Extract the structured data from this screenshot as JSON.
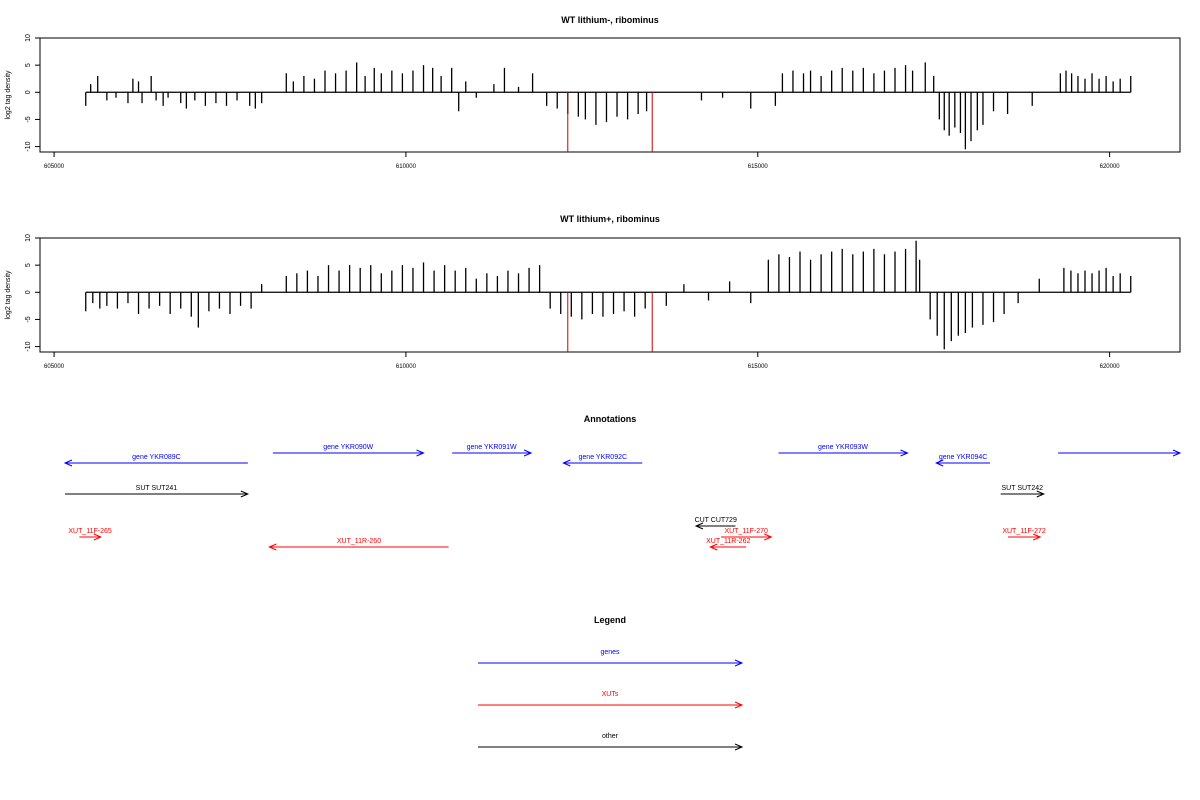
{
  "chart_data": [
    {
      "type": "bar",
      "title": "WT lithium-, ribominus",
      "ylabel": "log2 tag density",
      "xlabel": "",
      "xlim": [
        604800,
        621000
      ],
      "ylim": [
        -11,
        10
      ],
      "x_ticks": [
        605000,
        610000,
        615000,
        620000
      ],
      "y_ticks": [
        10,
        5,
        0,
        -5,
        -10
      ],
      "baseline": 0,
      "series": [
        {
          "color": "#000000",
          "x": [
            605450,
            605520,
            605620,
            605750,
            605880,
            606050,
            606120,
            606200,
            606250,
            606380,
            606450,
            606550,
            606620,
            606800,
            606880,
            607000,
            607150,
            607300,
            607450,
            607600,
            607780,
            607860,
            607950,
            608300,
            608400,
            608550,
            608700,
            608850,
            609000,
            609150,
            609300,
            609420,
            609550,
            609650,
            609800,
            609950,
            610100,
            610250,
            610380,
            610500,
            610650,
            610750,
            610850,
            611000,
            611250,
            611400,
            611600,
            611800,
            612000,
            612150,
            612300,
            612450,
            612550,
            612700,
            612850,
            613000,
            613150,
            613300,
            613420,
            614200,
            614500,
            614900,
            615250,
            615350,
            615500,
            615650,
            615750,
            615900,
            616050,
            616200,
            616350,
            616500,
            616650,
            616800,
            616950,
            617100,
            617200,
            617380,
            617500,
            617580,
            617650,
            617720,
            617800,
            617880,
            617950,
            618030,
            618120,
            618200,
            618350,
            618550,
            618900,
            619300,
            619380,
            619460,
            619550,
            619650,
            619750,
            619850,
            619950,
            620050,
            620150,
            620300
          ],
          "y": [
            -2.5,
            1.5,
            3,
            -1.5,
            -1,
            -2,
            2.5,
            2,
            -2,
            3,
            -1.5,
            -2.5,
            -1,
            -2,
            -3,
            -1.5,
            -2.5,
            -2,
            -2.5,
            -1.5,
            -2.5,
            -3,
            -2,
            3.5,
            2,
            3,
            2.5,
            4,
            3.5,
            4,
            5.5,
            3,
            4.5,
            3.5,
            4,
            3.5,
            4,
            5,
            4.5,
            3,
            4.5,
            -3.5,
            2,
            -1,
            1.5,
            4.5,
            1,
            3.5,
            -2.5,
            -3,
            -4,
            -4.5,
            -5,
            -6,
            -5.5,
            -4.5,
            -5,
            -4,
            -3.5,
            -1.5,
            -1,
            -3,
            -2.5,
            3.5,
            4,
            3.5,
            4,
            3,
            4,
            4.5,
            4,
            4.5,
            3.5,
            4,
            4.5,
            5,
            4,
            5.5,
            3,
            -5,
            -7,
            -8,
            -6.5,
            -7.5,
            -10.5,
            -9,
            -7,
            -6,
            -3.5,
            -4,
            -2.5,
            3.5,
            4,
            3.5,
            3,
            2.5,
            3.5,
            2.5,
            3,
            2,
            2.5,
            3
          ]
        },
        {
          "color": "#cc0000",
          "x": [
            612300,
            613500
          ],
          "y": [
            -11,
            -11
          ]
        }
      ]
    },
    {
      "type": "bar",
      "title": "WT lithium+, ribominus",
      "ylabel": "log2 tag density",
      "xlabel": "",
      "xlim": [
        604800,
        621000
      ],
      "ylim": [
        -11,
        10
      ],
      "x_ticks": [
        605000,
        610000,
        615000,
        620000
      ],
      "y_ticks": [
        10,
        5,
        0,
        -5,
        -10
      ],
      "baseline": 0,
      "series": [
        {
          "color": "#000000",
          "x": [
            605450,
            605550,
            605650,
            605750,
            605900,
            606050,
            606200,
            606350,
            606500,
            606650,
            606800,
            606950,
            607050,
            607200,
            607350,
            607500,
            607650,
            607800,
            607950,
            608300,
            608450,
            608600,
            608750,
            608900,
            609050,
            609200,
            609350,
            609500,
            609650,
            609800,
            609950,
            610100,
            610250,
            610400,
            610550,
            610700,
            610850,
            611000,
            611150,
            611300,
            611450,
            611600,
            611750,
            611900,
            612050,
            612200,
            612350,
            612500,
            612650,
            612800,
            612950,
            613100,
            613250,
            613400,
            613700,
            613950,
            614300,
            614600,
            614900,
            615150,
            615300,
            615450,
            615600,
            615750,
            615900,
            616050,
            616200,
            616350,
            616500,
            616650,
            616800,
            616950,
            617100,
            617250,
            617300,
            617450,
            617550,
            617650,
            617750,
            617850,
            617950,
            618050,
            618200,
            618350,
            618500,
            618700,
            619000,
            619350,
            619450,
            619550,
            619650,
            619750,
            619850,
            619950,
            620050,
            620150,
            620300
          ],
          "y": [
            -3.5,
            -2,
            -3,
            -2.5,
            -3,
            -2,
            -4,
            -3,
            -2.5,
            -4,
            -3,
            -4.5,
            -6.5,
            -3.5,
            -3,
            -4,
            -2.5,
            -3,
            1.5,
            3,
            3.5,
            4,
            3,
            5,
            4,
            5,
            4.5,
            5,
            3.5,
            4,
            5,
            4.5,
            5.5,
            4,
            5,
            4,
            4.5,
            2.5,
            3.5,
            3,
            4,
            3.5,
            4.5,
            5,
            -3,
            -4,
            -4.5,
            -5,
            -4,
            -4.5,
            -4,
            -3.5,
            -4.5,
            -3,
            -2.5,
            1.5,
            -1.5,
            2,
            -2,
            6,
            7,
            6.5,
            7.5,
            6,
            7,
            7.5,
            8,
            7,
            7.5,
            8,
            7,
            7.5,
            8,
            9.5,
            6,
            -5,
            -8,
            -10.5,
            -9,
            -8,
            -7.5,
            -6.5,
            -6,
            -5.5,
            -4,
            -2,
            2.5,
            4.5,
            4,
            3.5,
            4,
            3.5,
            4,
            4.5,
            3,
            3.5,
            3
          ]
        },
        {
          "color": "#cc0000",
          "x": [
            612300,
            613500
          ],
          "y": [
            -11,
            -11
          ]
        }
      ]
    }
  ],
  "annotations": {
    "title": "Annotations",
    "colors": {
      "genes": "#0000ff",
      "xuts": "#ff0000",
      "other": "#000000"
    },
    "items": [
      {
        "label": "gene YKR089C",
        "category": "genes",
        "strand": "minus",
        "start": 605450,
        "end": 608000,
        "row": 1
      },
      {
        "label": "gene YKR090W",
        "category": "genes",
        "strand": "plus",
        "start": 608350,
        "end": 610450,
        "row": 0
      },
      {
        "label": "gene YKR091W",
        "category": "genes",
        "strand": "plus",
        "start": 610850,
        "end": 611950,
        "row": 0
      },
      {
        "label": "gene YKR092C",
        "category": "genes",
        "strand": "minus",
        "start": 612400,
        "end": 613500,
        "row": 1
      },
      {
        "label": "gene YKR093W",
        "category": "genes",
        "strand": "plus",
        "start": 615400,
        "end": 617200,
        "row": 0
      },
      {
        "label": "gene YKR094C",
        "category": "genes",
        "strand": "minus",
        "start": 617600,
        "end": 618350,
        "row": 1
      },
      {
        "label": "",
        "category": "genes",
        "strand": "plus",
        "start": 619300,
        "end": 621000,
        "row": 0
      },
      {
        "label": "SUT SUT241",
        "category": "other",
        "strand": "plus",
        "start": 605450,
        "end": 608000,
        "row": 2
      },
      {
        "label": "SUT SUT242",
        "category": "other",
        "strand": "plus",
        "start": 618500,
        "end": 619100,
        "row": 2
      },
      {
        "label": "CUT CUT729",
        "category": "other",
        "strand": "minus",
        "start": 614250,
        "end": 614800,
        "row": 3
      },
      {
        "label": "XUT_11F-265",
        "category": "xuts",
        "strand": "plus",
        "start": 605650,
        "end": 605950,
        "row": 4
      },
      {
        "label": "XUT_11R-260",
        "category": "xuts",
        "strand": "minus",
        "start": 608300,
        "end": 610800,
        "row": 5
      },
      {
        "label": "XUT_11F-270",
        "category": "xuts",
        "strand": "plus",
        "start": 614600,
        "end": 615300,
        "row": 4
      },
      {
        "label": "XUT_11R-262",
        "category": "xuts",
        "strand": "minus",
        "start": 614450,
        "end": 614950,
        "row": 6
      },
      {
        "label": "XUT_11F-272",
        "category": "xuts",
        "strand": "plus",
        "start": 618600,
        "end": 619050,
        "row": 4
      }
    ]
  },
  "legend": {
    "title": "Legend",
    "entries": [
      {
        "label": "genes",
        "color": "#0000ff"
      },
      {
        "label": "XUTs",
        "color": "#ff0000"
      },
      {
        "label": "other",
        "color": "#000000"
      }
    ]
  }
}
